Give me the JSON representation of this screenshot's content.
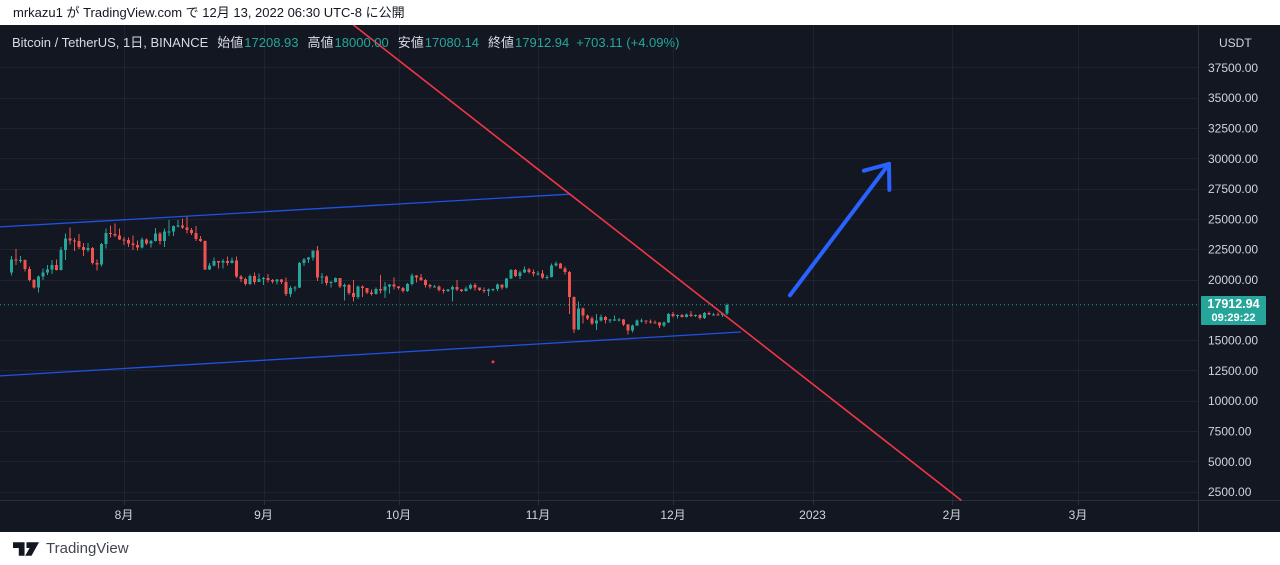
{
  "attribution": {
    "text": "mrkazu1 が TradingView.com で 12月 13, 2022 06:30 UTC-8 に公開"
  },
  "legend": {
    "symbol": "Bitcoin / TetherUS, 1日, BINANCE",
    "o_label": "始値",
    "o": "17208.93",
    "h_label": "高値",
    "h": "18000.00",
    "l_label": "安値",
    "l": "17080.14",
    "c_label": "終値",
    "c": "17912.94",
    "change": "+703.11 (+4.09%)"
  },
  "price_axis": {
    "currency": "USDT",
    "ticks": [
      {
        "value": 37500,
        "label": "37500.00"
      },
      {
        "value": 35000,
        "label": "35000.00"
      },
      {
        "value": 32500,
        "label": "32500.00"
      },
      {
        "value": 30000,
        "label": "30000.00"
      },
      {
        "value": 27500,
        "label": "27500.00"
      },
      {
        "value": 25000,
        "label": "25000.00"
      },
      {
        "value": 22500,
        "label": "22500.00"
      },
      {
        "value": 20000,
        "label": "20000.00"
      },
      {
        "value": 15000,
        "label": "15000.00"
      },
      {
        "value": 12500,
        "label": "12500.00"
      },
      {
        "value": 10000,
        "label": "10000.00"
      },
      {
        "value": 7500,
        "label": "7500.00"
      },
      {
        "value": 5000,
        "label": "5000.00"
      },
      {
        "value": 2500,
        "label": "2500.00"
      }
    ],
    "last_price_label": {
      "price": "17912.94",
      "countdown": "09:29:22"
    }
  },
  "time_axis": {
    "labels": [
      {
        "date": "2022-08-01",
        "label": "8月"
      },
      {
        "date": "2022-09-01",
        "label": "9月"
      },
      {
        "date": "2022-10-01",
        "label": "10月"
      },
      {
        "date": "2022-11-01",
        "label": "11月"
      },
      {
        "date": "2022-12-01",
        "label": "12月"
      },
      {
        "date": "2023-01-01",
        "label": "2023"
      },
      {
        "date": "2023-02-01",
        "label": "2月"
      },
      {
        "date": "2023-03-01",
        "label": "3月"
      }
    ]
  },
  "footer": {
    "brand": "TradingView"
  },
  "colors": {
    "background": "#131722",
    "up": "#26a69a",
    "down": "#ef5350",
    "grid": "rgba(134,150,170,0.10)",
    "axis_text": "#d1d4dc",
    "border": "#2a2e39",
    "trendline_red": "#f23645",
    "channel_blue": "#1e53e5",
    "arrow_blue": "#2962ff",
    "label_bg": "#26a69a"
  },
  "chart_data": {
    "type": "candlestick",
    "title": "Bitcoin / TetherUS",
    "exchange": "BINANCE",
    "interval": "1日",
    "quote_currency": "USDT",
    "xlim": [
      "2022-07-04",
      "2023-03-27"
    ],
    "ylim": [
      1800,
      41030
    ],
    "grid": true,
    "last": {
      "open": 17208.93,
      "high": 18000.0,
      "low": 17080.14,
      "close": 17912.94,
      "change": "+703.11",
      "change_pct": "+4.09%",
      "countdown": "09:29:22"
    },
    "candles": [
      [
        "2022-07-07",
        20580,
        21950,
        20350,
        21640
      ],
      [
        "2022-07-08",
        21640,
        22500,
        21200,
        21590
      ],
      [
        "2022-07-09",
        21590,
        21950,
        21350,
        21590
      ],
      [
        "2022-07-10",
        21590,
        21660,
        20650,
        20860
      ],
      [
        "2022-07-11",
        20860,
        21070,
        19850,
        19960
      ],
      [
        "2022-07-12",
        19960,
        20050,
        19240,
        19330
      ],
      [
        "2022-07-13",
        19330,
        20330,
        18910,
        20230
      ],
      [
        "2022-07-14",
        20230,
        20900,
        19950,
        20570
      ],
      [
        "2022-07-15",
        20570,
        21190,
        20380,
        20840
      ],
      [
        "2022-07-16",
        20840,
        21590,
        20470,
        21190
      ],
      [
        "2022-07-17",
        21190,
        21670,
        20750,
        20780
      ],
      [
        "2022-07-18",
        20780,
        22690,
        20760,
        22430
      ],
      [
        "2022-07-19",
        22430,
        23800,
        21600,
        23390
      ],
      [
        "2022-07-20",
        23390,
        24290,
        22900,
        23230
      ],
      [
        "2022-07-21",
        23230,
        23440,
        22340,
        23160
      ],
      [
        "2022-07-22",
        23160,
        23750,
        22500,
        22690
      ],
      [
        "2022-07-23",
        22690,
        23010,
        21950,
        22450
      ],
      [
        "2022-07-24",
        22450,
        23020,
        22250,
        22610
      ],
      [
        "2022-07-25",
        22610,
        22670,
        21250,
        21360
      ],
      [
        "2022-07-26",
        21360,
        21650,
        20730,
        21240
      ],
      [
        "2022-07-27",
        21240,
        23000,
        21060,
        22930
      ],
      [
        "2022-07-28",
        22930,
        24200,
        22550,
        23840
      ],
      [
        "2022-07-29",
        23840,
        24450,
        23450,
        23770
      ],
      [
        "2022-07-30",
        23770,
        24600,
        23520,
        23640
      ],
      [
        "2022-07-31",
        23640,
        24190,
        23250,
        23290
      ],
      [
        "2022-08-01",
        23290,
        23510,
        22850,
        23270
      ],
      [
        "2022-08-02",
        23270,
        23470,
        22700,
        22980
      ],
      [
        "2022-08-03",
        22980,
        23650,
        22430,
        22850
      ],
      [
        "2022-08-04",
        22850,
        23220,
        22400,
        22630
      ],
      [
        "2022-08-05",
        22630,
        23470,
        22570,
        23310
      ],
      [
        "2022-08-06",
        23310,
        23400,
        22830,
        22950
      ],
      [
        "2022-08-07",
        22950,
        23270,
        22660,
        23180
      ],
      [
        "2022-08-08",
        23180,
        24250,
        23150,
        23810
      ],
      [
        "2022-08-09",
        23810,
        23910,
        22870,
        23160
      ],
      [
        "2022-08-10",
        23160,
        24220,
        22670,
        23950
      ],
      [
        "2022-08-11",
        23950,
        24920,
        23570,
        23960
      ],
      [
        "2022-08-12",
        23960,
        24450,
        23600,
        24400
      ],
      [
        "2022-08-13",
        24400,
        24890,
        24300,
        24440
      ],
      [
        "2022-08-14",
        24440,
        25050,
        24150,
        24310
      ],
      [
        "2022-08-15",
        24310,
        25210,
        23800,
        24100
      ],
      [
        "2022-08-16",
        24100,
        24250,
        23690,
        23850
      ],
      [
        "2022-08-17",
        23850,
        24430,
        23180,
        23340
      ],
      [
        "2022-08-18",
        23340,
        23600,
        23110,
        23190
      ],
      [
        "2022-08-19",
        23190,
        23210,
        20780,
        20840
      ],
      [
        "2022-08-20",
        20840,
        21380,
        20770,
        21140
      ],
      [
        "2022-08-21",
        21140,
        21800,
        21080,
        21520
      ],
      [
        "2022-08-22",
        21520,
        21530,
        20900,
        21400
      ],
      [
        "2022-08-23",
        21400,
        21680,
        20890,
        21530
      ],
      [
        "2022-08-24",
        21530,
        21900,
        21150,
        21370
      ],
      [
        "2022-08-25",
        21370,
        21820,
        21310,
        21560
      ],
      [
        "2022-08-26",
        21560,
        21880,
        20110,
        20240
      ],
      [
        "2022-08-27",
        20240,
        20390,
        19810,
        20040
      ],
      [
        "2022-08-28",
        20040,
        20170,
        19520,
        19620
      ],
      [
        "2022-08-29",
        19620,
        20430,
        19550,
        20300
      ],
      [
        "2022-08-30",
        20300,
        20580,
        19570,
        19800
      ],
      [
        "2022-08-31",
        19800,
        20480,
        19790,
        20050
      ],
      [
        "2022-09-01",
        20050,
        20200,
        19560,
        20130
      ],
      [
        "2022-09-02",
        20130,
        20440,
        19750,
        19950
      ],
      [
        "2022-09-03",
        19950,
        20060,
        19660,
        19830
      ],
      [
        "2022-09-04",
        19830,
        20030,
        19590,
        19990
      ],
      [
        "2022-09-05",
        19990,
        20060,
        19630,
        19790
      ],
      [
        "2022-09-06",
        19790,
        20180,
        18630,
        18790
      ],
      [
        "2022-09-07",
        18790,
        19460,
        18540,
        19290
      ],
      [
        "2022-09-08",
        19290,
        19450,
        19000,
        19320
      ],
      [
        "2022-09-09",
        19320,
        21430,
        19290,
        21360
      ],
      [
        "2022-09-10",
        21360,
        21770,
        21120,
        21650
      ],
      [
        "2022-09-11",
        21650,
        21850,
        21350,
        21830
      ],
      [
        "2022-09-12",
        21830,
        22400,
        21550,
        22400
      ],
      [
        "2022-09-13",
        22400,
        22750,
        19860,
        20170
      ],
      [
        "2022-09-14",
        20170,
        20520,
        19620,
        20230
      ],
      [
        "2022-09-15",
        20230,
        20330,
        19500,
        19700
      ],
      [
        "2022-09-16",
        19700,
        19890,
        19330,
        19780
      ],
      [
        "2022-09-17",
        19780,
        20180,
        19740,
        20110
      ],
      [
        "2022-09-18",
        20110,
        20120,
        19310,
        19420
      ],
      [
        "2022-09-19",
        19420,
        19690,
        18260,
        19540
      ],
      [
        "2022-09-20",
        19540,
        19630,
        18740,
        18890
      ],
      [
        "2022-09-21",
        18890,
        19950,
        18200,
        18550
      ],
      [
        "2022-09-22",
        18550,
        19500,
        18390,
        19410
      ],
      [
        "2022-09-23",
        19410,
        19490,
        18570,
        19300
      ],
      [
        "2022-09-24",
        19300,
        19310,
        18810,
        18940
      ],
      [
        "2022-09-25",
        18940,
        19180,
        18680,
        18810
      ],
      [
        "2022-09-26",
        18810,
        19320,
        18760,
        19230
      ],
      [
        "2022-09-27",
        19230,
        20380,
        18860,
        19080
      ],
      [
        "2022-09-28",
        19080,
        19790,
        18480,
        19410
      ],
      [
        "2022-09-29",
        19410,
        19640,
        18860,
        19590
      ],
      [
        "2022-09-30",
        19590,
        20180,
        19170,
        19420
      ],
      [
        "2022-10-01",
        19420,
        19480,
        19160,
        19310
      ],
      [
        "2022-10-02",
        19310,
        19390,
        18920,
        19060
      ],
      [
        "2022-10-03",
        19060,
        19720,
        18960,
        19630
      ],
      [
        "2022-10-04",
        19630,
        20480,
        19500,
        20340
      ],
      [
        "2022-10-05",
        20340,
        20370,
        19750,
        20160
      ],
      [
        "2022-10-06",
        20160,
        20440,
        19870,
        19960
      ],
      [
        "2022-10-07",
        19960,
        20050,
        19320,
        19530
      ],
      [
        "2022-10-08",
        19530,
        19620,
        19270,
        19420
      ],
      [
        "2022-10-09",
        19420,
        19560,
        19320,
        19440
      ],
      [
        "2022-10-10",
        19440,
        19520,
        19020,
        19140
      ],
      [
        "2022-10-11",
        19140,
        19270,
        18860,
        19050
      ],
      [
        "2022-10-12",
        19050,
        19230,
        18960,
        19160
      ],
      [
        "2022-10-13",
        19160,
        19510,
        18190,
        19380
      ],
      [
        "2022-10-14",
        19380,
        19950,
        19070,
        19180
      ],
      [
        "2022-10-15",
        19180,
        19220,
        18970,
        19070
      ],
      [
        "2022-10-16",
        19070,
        19420,
        19010,
        19260
      ],
      [
        "2022-10-17",
        19260,
        19670,
        19160,
        19550
      ],
      [
        "2022-10-18",
        19550,
        19700,
        19090,
        19330
      ],
      [
        "2022-10-19",
        19330,
        19350,
        19070,
        19120
      ],
      [
        "2022-10-20",
        19120,
        19350,
        18900,
        19040
      ],
      [
        "2022-10-21",
        19040,
        19250,
        18650,
        19170
      ],
      [
        "2022-10-22",
        19170,
        19260,
        19030,
        19200
      ],
      [
        "2022-10-23",
        19200,
        19690,
        19070,
        19570
      ],
      [
        "2022-10-24",
        19570,
        19600,
        19180,
        19330
      ],
      [
        "2022-10-25",
        19330,
        20110,
        19240,
        20080
      ],
      [
        "2022-10-26",
        20080,
        20860,
        20050,
        20770
      ],
      [
        "2022-10-27",
        20770,
        20880,
        20200,
        20300
      ],
      [
        "2022-10-28",
        20300,
        20750,
        20040,
        20590
      ],
      [
        "2022-10-29",
        20590,
        21080,
        20530,
        20810
      ],
      [
        "2022-10-30",
        20810,
        20930,
        20500,
        20630
      ],
      [
        "2022-10-31",
        20630,
        20830,
        20230,
        20490
      ],
      [
        "2022-11-01",
        20490,
        20700,
        20330,
        20490
      ],
      [
        "2022-11-02",
        20490,
        20800,
        20050,
        20150
      ],
      [
        "2022-11-03",
        20150,
        20380,
        20010,
        20210
      ],
      [
        "2022-11-04",
        20210,
        21300,
        20180,
        21150
      ],
      [
        "2022-11-05",
        21150,
        21480,
        21070,
        21300
      ],
      [
        "2022-11-06",
        21300,
        21360,
        20900,
        20910
      ],
      [
        "2022-11-07",
        20910,
        21070,
        20430,
        20600
      ],
      [
        "2022-11-08",
        20600,
        20700,
        17170,
        18540
      ],
      [
        "2022-11-09",
        18540,
        18590,
        15590,
        15880
      ],
      [
        "2022-11-10",
        15880,
        18200,
        15840,
        17590
      ],
      [
        "2022-11-11",
        17590,
        17690,
        16360,
        17030
      ],
      [
        "2022-11-12",
        17030,
        17100,
        16640,
        16800
      ],
      [
        "2022-11-13",
        16800,
        16960,
        16230,
        16350
      ],
      [
        "2022-11-14",
        16350,
        17170,
        15820,
        16620
      ],
      [
        "2022-11-15",
        16620,
        17130,
        16540,
        16900
      ],
      [
        "2022-11-16",
        16900,
        16990,
        16380,
        16660
      ],
      [
        "2022-11-17",
        16660,
        16750,
        16400,
        16690
      ],
      [
        "2022-11-18",
        16690,
        17010,
        16560,
        16700
      ],
      [
        "2022-11-19",
        16700,
        16820,
        16550,
        16700
      ],
      [
        "2022-11-20",
        16700,
        16750,
        16180,
        16280
      ],
      [
        "2022-11-21",
        16280,
        16310,
        15480,
        15790
      ],
      [
        "2022-11-22",
        15790,
        16290,
        15620,
        16190
      ],
      [
        "2022-11-23",
        16190,
        16700,
        16150,
        16600
      ],
      [
        "2022-11-24",
        16600,
        16790,
        16460,
        16600
      ],
      [
        "2022-11-25",
        16600,
        16610,
        16340,
        16520
      ],
      [
        "2022-11-26",
        16520,
        16700,
        16380,
        16460
      ],
      [
        "2022-11-27",
        16460,
        16600,
        16410,
        16440
      ],
      [
        "2022-11-28",
        16440,
        16490,
        16010,
        16220
      ],
      [
        "2022-11-29",
        16220,
        16550,
        16100,
        16440
      ],
      [
        "2022-11-30",
        16440,
        17250,
        16430,
        17160
      ],
      [
        "2022-12-01",
        17160,
        17320,
        16860,
        16970
      ],
      [
        "2022-12-02",
        16970,
        17110,
        16790,
        17090
      ],
      [
        "2022-12-03",
        17090,
        17140,
        16860,
        16910
      ],
      [
        "2022-12-04",
        16910,
        17210,
        16880,
        17110
      ],
      [
        "2022-12-05",
        17110,
        17420,
        16890,
        16970
      ],
      [
        "2022-12-06",
        16970,
        17110,
        16910,
        17090
      ],
      [
        "2022-12-07",
        17090,
        17140,
        16680,
        16840
      ],
      [
        "2022-12-08",
        16840,
        17300,
        16730,
        17220
      ],
      [
        "2022-12-09",
        17220,
        17360,
        17060,
        17130
      ],
      [
        "2022-12-10",
        17130,
        17230,
        17100,
        17130
      ],
      [
        "2022-12-11",
        17130,
        17270,
        17070,
        17090
      ],
      [
        "2022-12-12",
        17090,
        17240,
        16900,
        17210
      ],
      [
        "2022-12-13",
        17208.93,
        18000.0,
        17080.14,
        17912.94
      ]
    ],
    "drawings": {
      "descending_trendline": {
        "from": {
          "date": "2022-09-21",
          "price": 41000
        },
        "to": {
          "date": "2023-02-03",
          "price": 1800
        }
      },
      "channel_upper": {
        "from": {
          "date": "2022-07-04",
          "price": 24330
        },
        "to": {
          "date": "2022-11-08",
          "price": 27040
        }
      },
      "channel_lower": {
        "from": {
          "date": "2022-07-04",
          "price": 12040
        },
        "to": {
          "date": "2022-12-16",
          "price": 15670
        }
      },
      "projection_arrow": {
        "from": {
          "date": "2022-12-27",
          "price": 18700
        },
        "to": {
          "date": "2023-01-18",
          "price": 29540
        }
      },
      "stray_mark": {
        "date": "2022-10-22",
        "price": 13200
      }
    }
  }
}
